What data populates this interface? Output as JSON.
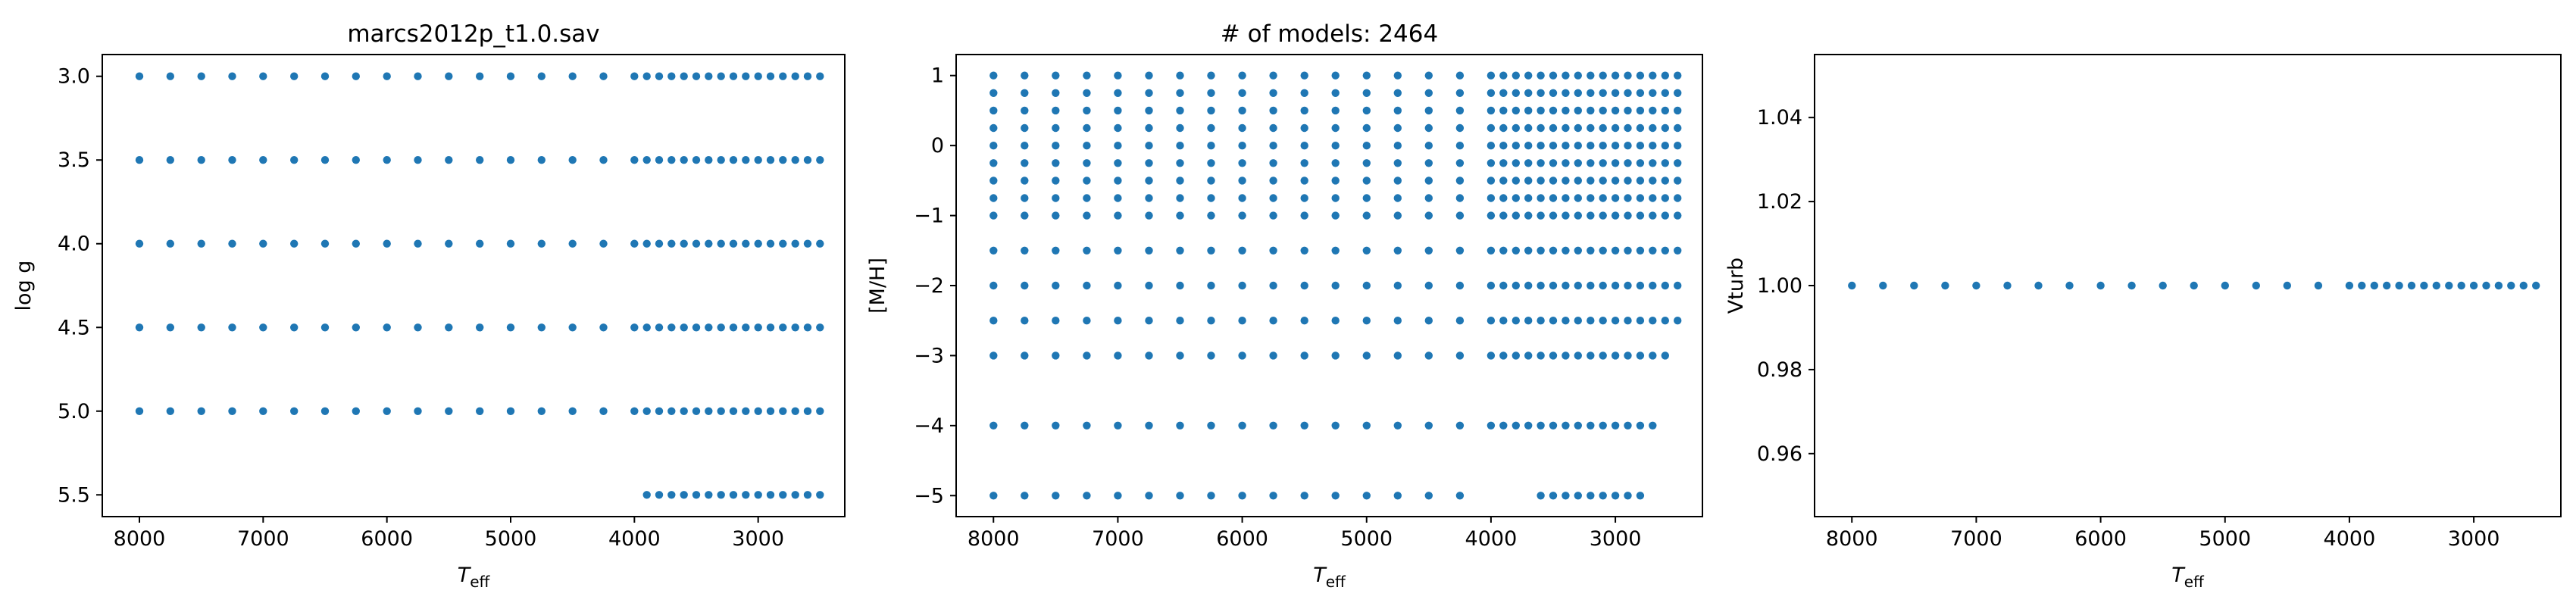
{
  "figure": {
    "point_color": "#1f77b4"
  },
  "chart_data": [
    {
      "type": "scatter",
      "title": "marcs2012p_t1.0.sav",
      "xlabel": "T",
      "xlabel_sub": "eff",
      "ylabel": "log g",
      "xlim": [
        8300,
        2300
      ],
      "ylim": [
        5.63,
        2.87
      ],
      "xticks": [
        8000,
        7000,
        6000,
        5000,
        4000,
        3000
      ],
      "yticks": [
        3.0,
        3.5,
        4.0,
        4.5,
        5.0,
        5.5
      ],
      "xtick_labels": [
        "8000",
        "7000",
        "6000",
        "5000",
        "4000",
        "3000"
      ],
      "ytick_labels": [
        "3.0",
        "3.5",
        "4.0",
        "4.5",
        "5.0",
        "5.5"
      ],
      "rows": [
        {
          "y": 3.0,
          "x_from": 8000,
          "x_to": 4000,
          "x_step": 250,
          "x2_from": 3900,
          "x2_to": 2500,
          "x2_step": 100
        },
        {
          "y": 3.5,
          "x_from": 8000,
          "x_to": 4000,
          "x_step": 250,
          "x2_from": 3900,
          "x2_to": 2500,
          "x2_step": 100
        },
        {
          "y": 4.0,
          "x_from": 8000,
          "x_to": 4000,
          "x_step": 250,
          "x2_from": 3900,
          "x2_to": 2500,
          "x2_step": 100
        },
        {
          "y": 4.5,
          "x_from": 8000,
          "x_to": 4000,
          "x_step": 250,
          "x2_from": 3900,
          "x2_to": 2500,
          "x2_step": 100
        },
        {
          "y": 5.0,
          "x_from": 8000,
          "x_to": 4000,
          "x_step": 250,
          "x2_from": 3900,
          "x2_to": 2500,
          "x2_step": 100
        },
        {
          "y": 5.5,
          "x2_from": 3900,
          "x2_to": 2500,
          "x2_step": 100
        }
      ]
    },
    {
      "type": "scatter",
      "title": "# of models: 2464",
      "xlabel": "T",
      "xlabel_sub": "eff",
      "ylabel": "[M/H]",
      "xlim": [
        8300,
        2300
      ],
      "ylim": [
        -5.3,
        1.3
      ],
      "xticks": [
        8000,
        7000,
        6000,
        5000,
        4000,
        3000
      ],
      "yticks": [
        -5,
        -4,
        -3,
        -2,
        -1,
        0,
        1
      ],
      "xtick_labels": [
        "8000",
        "7000",
        "6000",
        "5000",
        "4000",
        "3000"
      ],
      "ytick_labels": [
        "−5",
        "−4",
        "−3",
        "−2",
        "−1",
        "0",
        "1"
      ],
      "rows": [
        {
          "y": 1.0,
          "x_from": 8000,
          "x_to": 4000,
          "x_step": 250,
          "x2_from": 3900,
          "x2_to": 2500,
          "x2_step": 100
        },
        {
          "y": 0.75,
          "x_from": 8000,
          "x_to": 4000,
          "x_step": 250,
          "x2_from": 3900,
          "x2_to": 2500,
          "x2_step": 100
        },
        {
          "y": 0.5,
          "x_from": 8000,
          "x_to": 4000,
          "x_step": 250,
          "x2_from": 3900,
          "x2_to": 2500,
          "x2_step": 100
        },
        {
          "y": 0.25,
          "x_from": 8000,
          "x_to": 4000,
          "x_step": 250,
          "x2_from": 3900,
          "x2_to": 2500,
          "x2_step": 100
        },
        {
          "y": 0.0,
          "x_from": 8000,
          "x_to": 4000,
          "x_step": 250,
          "x2_from": 3900,
          "x2_to": 2500,
          "x2_step": 100
        },
        {
          "y": -0.25,
          "x_from": 8000,
          "x_to": 4000,
          "x_step": 250,
          "x2_from": 3900,
          "x2_to": 2500,
          "x2_step": 100
        },
        {
          "y": -0.5,
          "x_from": 8000,
          "x_to": 4000,
          "x_step": 250,
          "x2_from": 3900,
          "x2_to": 2500,
          "x2_step": 100
        },
        {
          "y": -0.75,
          "x_from": 8000,
          "x_to": 4000,
          "x_step": 250,
          "x2_from": 3900,
          "x2_to": 2500,
          "x2_step": 100
        },
        {
          "y": -1.0,
          "x_from": 8000,
          "x_to": 4000,
          "x_step": 250,
          "x2_from": 3900,
          "x2_to": 2500,
          "x2_step": 100
        },
        {
          "y": -1.5,
          "x_from": 8000,
          "x_to": 4000,
          "x_step": 250,
          "x2_from": 3900,
          "x2_to": 2500,
          "x2_step": 100
        },
        {
          "y": -2.0,
          "x_from": 8000,
          "x_to": 4000,
          "x_step": 250,
          "x2_from": 3900,
          "x2_to": 2500,
          "x2_step": 100
        },
        {
          "y": -2.5,
          "x_from": 8000,
          "x_to": 4000,
          "x_step": 250,
          "x2_from": 3900,
          "x2_to": 2500,
          "x2_step": 100
        },
        {
          "y": -3.0,
          "x_from": 8000,
          "x_to": 4000,
          "x_step": 250,
          "x2_from": 3900,
          "x2_to": 2600,
          "x2_step": 100
        },
        {
          "y": -4.0,
          "x_from": 8000,
          "x_to": 4000,
          "x_step": 250,
          "x2_from": 3900,
          "x2_to": 2700,
          "x2_step": 100
        },
        {
          "y": -5.0,
          "x_from": 8000,
          "x_to": 4250,
          "x_step": 250,
          "x2_from": 3600,
          "x2_to": 2800,
          "x2_step": 100
        }
      ]
    },
    {
      "type": "scatter",
      "title": "",
      "xlabel": "T",
      "xlabel_sub": "eff",
      "ylabel": "Vturb",
      "xlim": [
        8300,
        2300
      ],
      "ylim": [
        0.945,
        1.055
      ],
      "xticks": [
        8000,
        7000,
        6000,
        5000,
        4000,
        3000
      ],
      "yticks": [
        0.96,
        0.98,
        1.0,
        1.02,
        1.04
      ],
      "xtick_labels": [
        "8000",
        "7000",
        "6000",
        "5000",
        "4000",
        "3000"
      ],
      "ytick_labels": [
        "0.96",
        "0.98",
        "1.00",
        "1.02",
        "1.04"
      ],
      "rows": [
        {
          "y": 1.0,
          "x_from": 8000,
          "x_to": 4250,
          "x_step": 250,
          "x2_from": 4000,
          "x2_to": 2500,
          "x2_step": 100
        }
      ]
    }
  ]
}
